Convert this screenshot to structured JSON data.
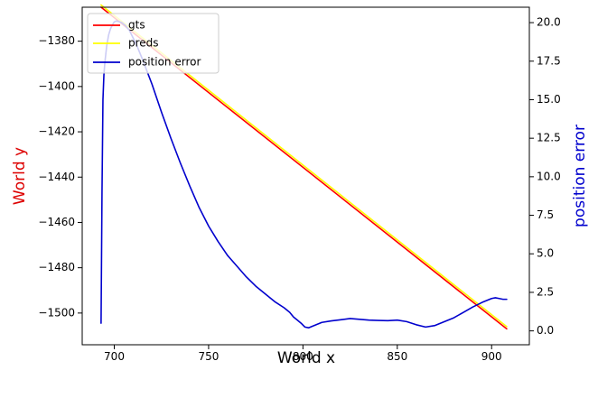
{
  "chart_data": {
    "type": "line",
    "xlabel": "World x",
    "ylabel_left": "World y",
    "ylabel_right": "position error",
    "xlim": [
      683,
      920
    ],
    "ylim_left": [
      -1514,
      -1365
    ],
    "ylim_right": [
      -0.9,
      21.0
    ],
    "xticks": [
      700,
      750,
      800,
      850,
      900
    ],
    "yticks_left": [
      -1380,
      -1400,
      -1420,
      -1440,
      -1460,
      -1480,
      -1500
    ],
    "yticks_right": [
      "0.0",
      "2.5",
      "5.0",
      "7.5",
      "10.0",
      "12.5",
      "15.0",
      "17.5",
      "20.0"
    ],
    "colors": {
      "gts": "#ff0000",
      "preds": "#ffff00",
      "error": "#0000cd",
      "ylabel_left": "#dd0000",
      "ylabel_right": "#0000cd"
    },
    "legend_position": "top-left",
    "series": [
      {
        "name": "gts",
        "axis": "left",
        "x": [
          693,
          908
        ],
        "y": [
          -1365,
          -1507
        ]
      },
      {
        "name": "preds",
        "axis": "left",
        "x": [
          693,
          908
        ],
        "y": [
          -1364,
          -1506
        ]
      },
      {
        "name": "position error",
        "axis": "right",
        "x": [
          693,
          693.5,
          694,
          694.5,
          695,
          696,
          697,
          698,
          699,
          700,
          701,
          702,
          703,
          704,
          706,
          708,
          710,
          712,
          715,
          720,
          725,
          730,
          735,
          740,
          745,
          750,
          755,
          760,
          765,
          770,
          775,
          780,
          785,
          790,
          793,
          795,
          797,
          799,
          801,
          803,
          805,
          810,
          815,
          820,
          825,
          830,
          835,
          840,
          845,
          850,
          855,
          860,
          865,
          870,
          875,
          880,
          885,
          890,
          895,
          900,
          902,
          904,
          906,
          908
        ],
        "y": [
          0.5,
          9.0,
          15.0,
          16.6,
          17.4,
          18.5,
          19.2,
          19.6,
          19.85,
          20.05,
          20.1,
          20.08,
          20.05,
          20.0,
          19.8,
          19.5,
          19.0,
          18.5,
          17.6,
          16.0,
          14.2,
          12.5,
          10.9,
          9.4,
          8.0,
          6.8,
          5.8,
          4.9,
          4.2,
          3.5,
          2.9,
          2.4,
          1.9,
          1.5,
          1.2,
          0.9,
          0.7,
          0.5,
          0.25,
          0.2,
          0.3,
          0.55,
          0.65,
          0.72,
          0.8,
          0.75,
          0.7,
          0.68,
          0.66,
          0.7,
          0.6,
          0.4,
          0.25,
          0.35,
          0.6,
          0.85,
          1.2,
          1.55,
          1.85,
          2.1,
          2.15,
          2.1,
          2.05,
          2.05
        ]
      }
    ]
  }
}
